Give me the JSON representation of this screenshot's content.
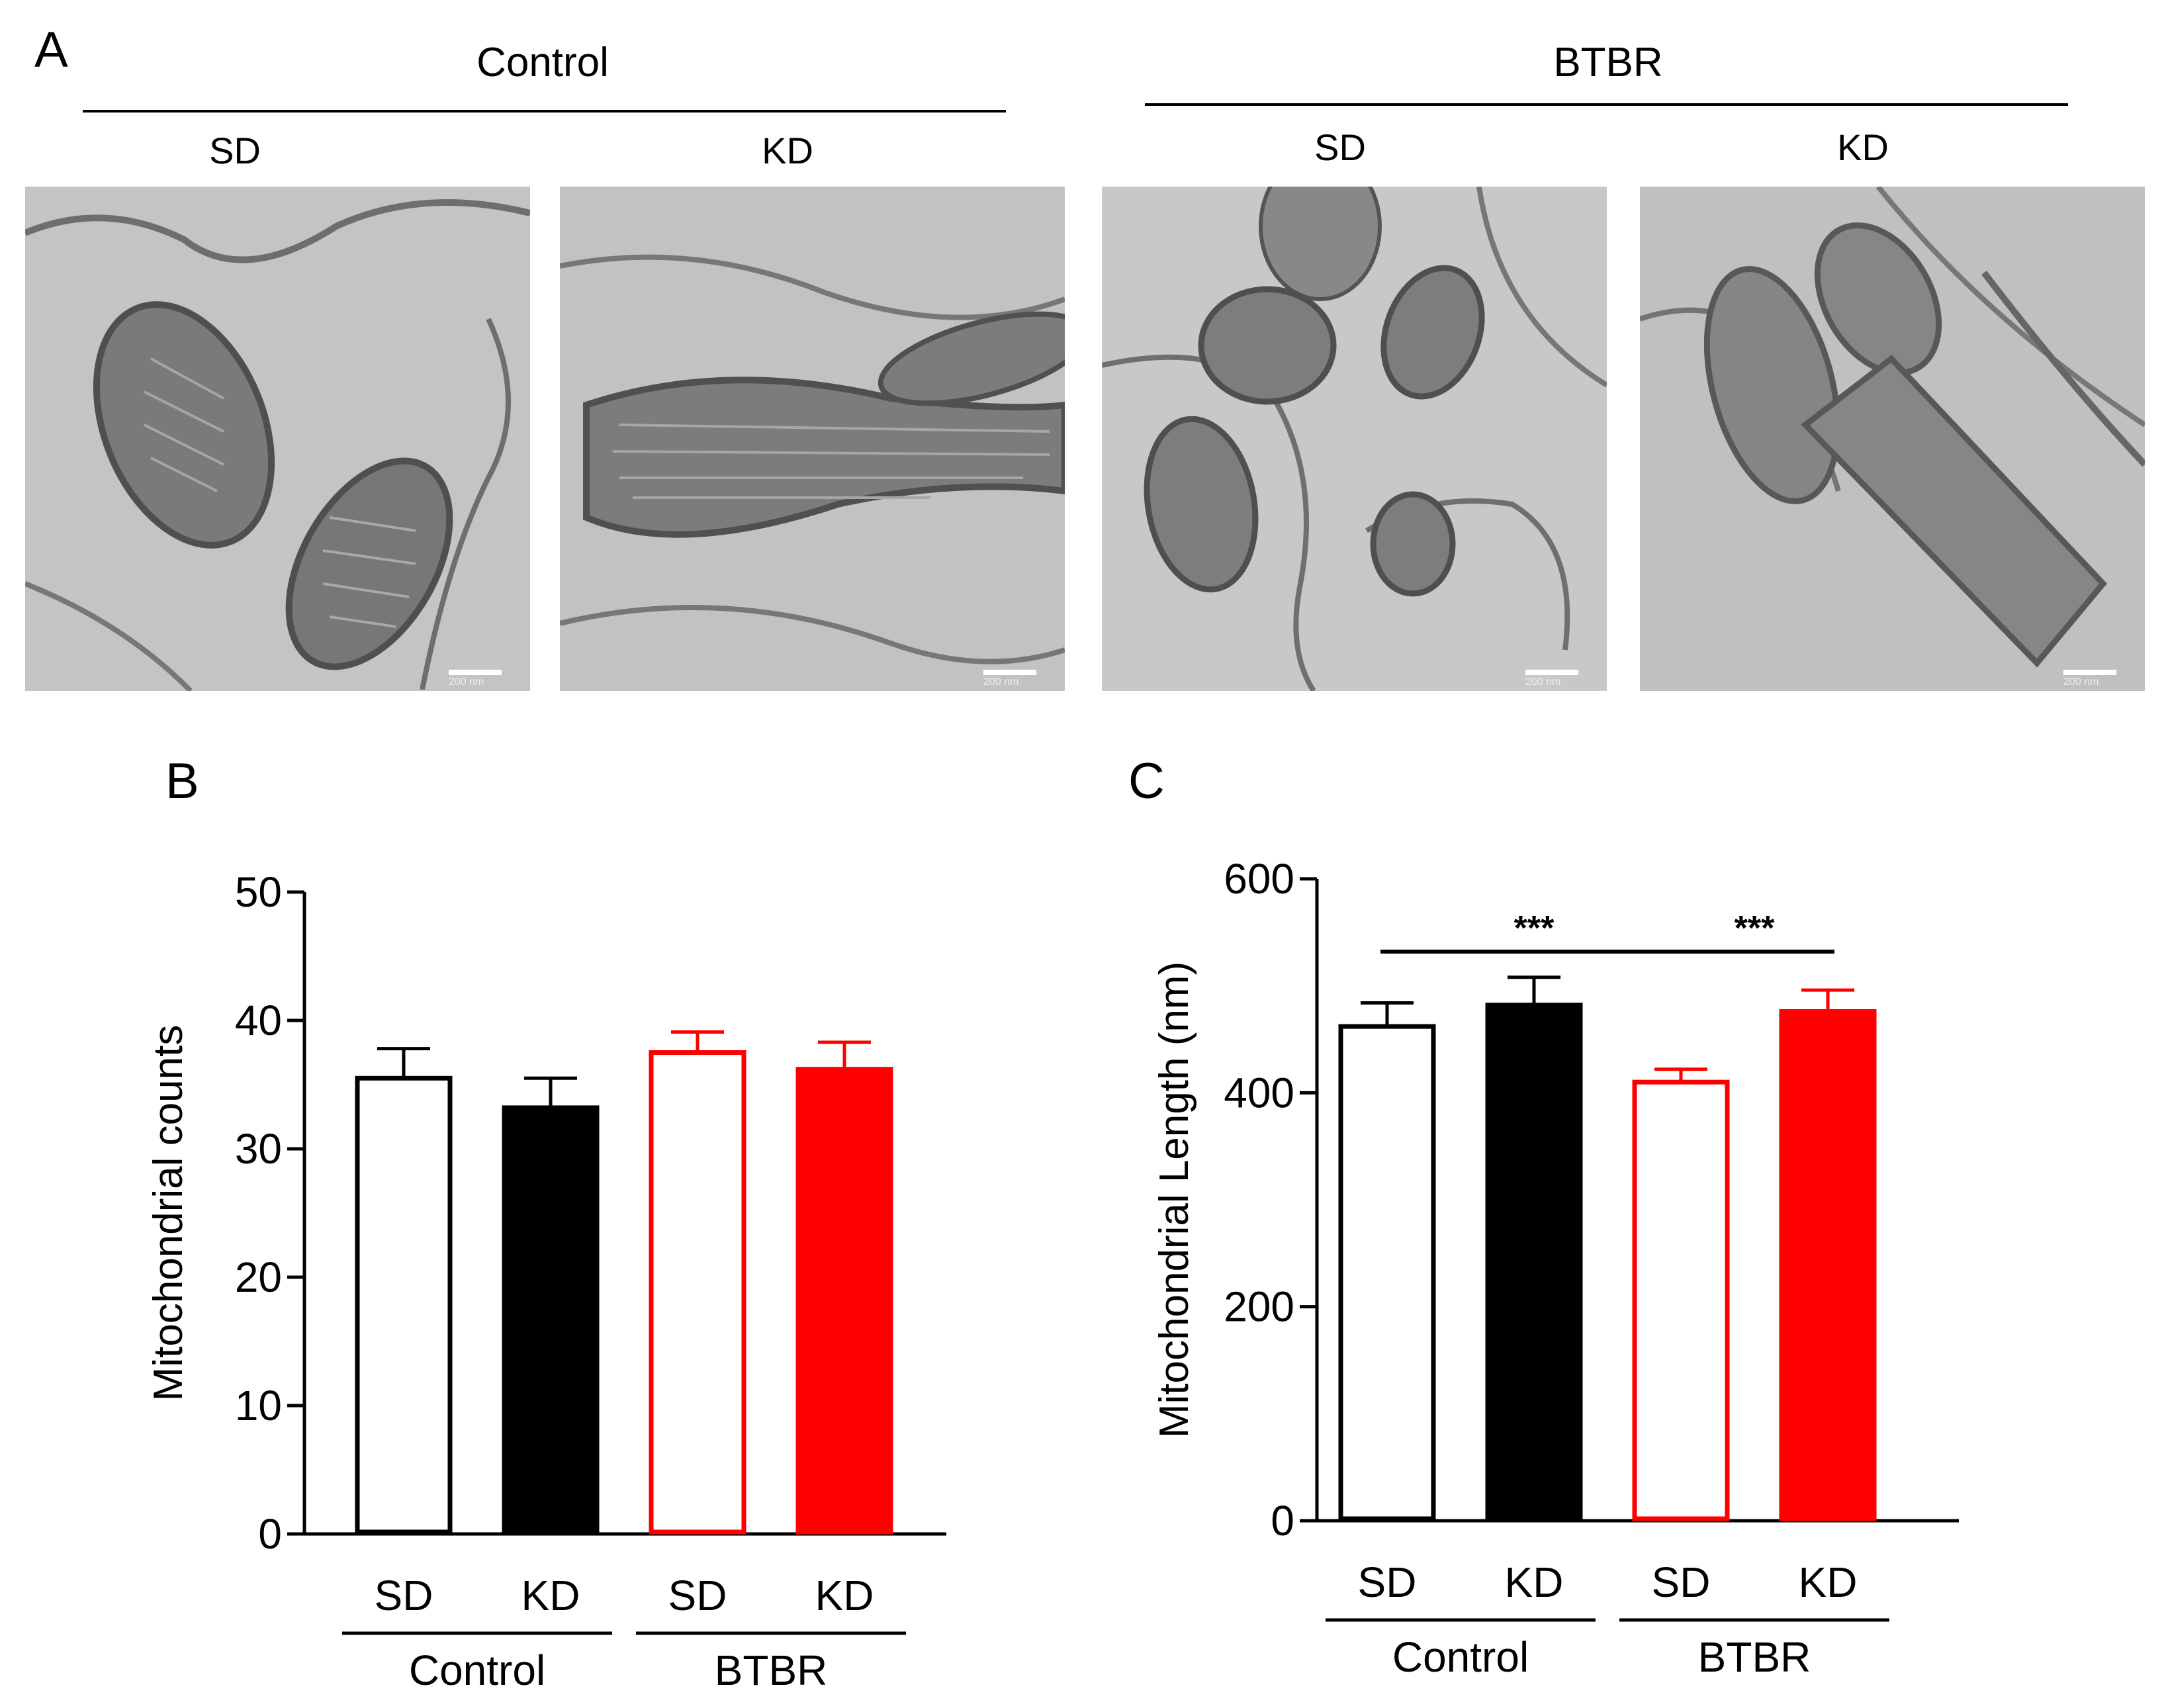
{
  "panels": {
    "a": {
      "letter": "A"
    },
    "b": {
      "letter": "B"
    },
    "c": {
      "letter": "C"
    }
  },
  "panel_a": {
    "groups": [
      "Control",
      "BTBR"
    ],
    "image_labels": [
      "SD",
      "KD",
      "SD",
      "KD"
    ],
    "scale_bar": "200 nm"
  },
  "chart_data": [
    {
      "type": "bar",
      "id": "B",
      "ylabel": "Mitochondrial counts",
      "ylim": [
        0,
        50
      ],
      "yticks": [
        0,
        10,
        20,
        30,
        40,
        50
      ],
      "categories": [
        "SD",
        "KD",
        "SD",
        "KD"
      ],
      "groups": [
        {
          "label": "Control",
          "span": [
            0,
            1
          ]
        },
        {
          "label": "BTBR",
          "span": [
            2,
            3
          ]
        }
      ],
      "values": [
        35.5,
        33.2,
        37.5,
        36.2
      ],
      "errors": [
        2.3,
        2.3,
        1.6,
        2.1
      ],
      "styles": [
        {
          "fill": "#ffffff",
          "stroke": "#000000"
        },
        {
          "fill": "#000000",
          "stroke": "#000000"
        },
        {
          "fill": "#ffffff",
          "stroke": "#ff0000"
        },
        {
          "fill": "#ff0000",
          "stroke": "#ff0000"
        }
      ],
      "significance": []
    },
    {
      "type": "bar",
      "id": "C",
      "ylabel": "Mitochondrial Length (nm)",
      "ylim": [
        0,
        600
      ],
      "yticks": [
        0,
        200,
        400,
        600
      ],
      "categories": [
        "SD",
        "KD",
        "SD",
        "KD"
      ],
      "groups": [
        {
          "label": "Control",
          "span": [
            0,
            1
          ]
        },
        {
          "label": "BTBR",
          "span": [
            2,
            3
          ]
        }
      ],
      "values": [
        462,
        482,
        410,
        476
      ],
      "errors": [
        22,
        26,
        12,
        20
      ],
      "styles": [
        {
          "fill": "#ffffff",
          "stroke": "#000000"
        },
        {
          "fill": "#000000",
          "stroke": "#000000"
        },
        {
          "fill": "#ffffff",
          "stroke": "#ff0000"
        },
        {
          "fill": "#ff0000",
          "stroke": "#ff0000"
        }
      ],
      "significance": [
        {
          "from": 0,
          "to": 2,
          "label": "***"
        },
        {
          "from": 2,
          "to": 3,
          "label": "***"
        }
      ]
    }
  ]
}
